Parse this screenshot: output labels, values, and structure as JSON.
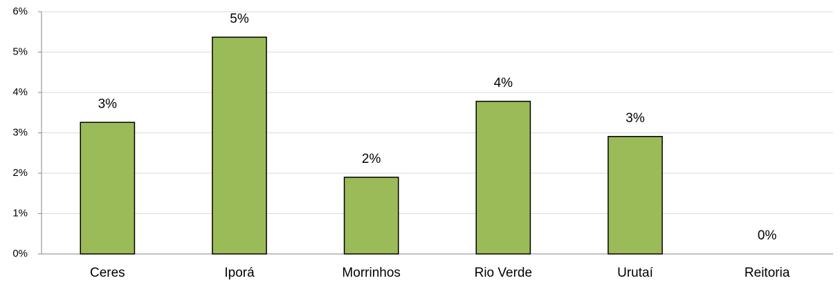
{
  "chart_data": {
    "type": "bar",
    "categories": [
      "Ceres",
      "Iporá",
      "Morrinhos",
      "Rio Verde",
      "Urutaí",
      "Reitoria"
    ],
    "values": [
      3.26,
      5.37,
      1.9,
      3.78,
      2.91,
      0
    ],
    "value_labels": [
      "3%",
      "5%",
      "2%",
      "4%",
      "3%",
      "0%"
    ],
    "color": "#9bbb59",
    "ylim": [
      0,
      6
    ],
    "yticks": [
      {
        "value": 0,
        "label": "0%"
      },
      {
        "value": 1,
        "label": "1%"
      },
      {
        "value": 2,
        "label": "2%"
      },
      {
        "value": 3,
        "label": "3%"
      },
      {
        "value": 4,
        "label": "4%"
      },
      {
        "value": 5,
        "label": "5%"
      },
      {
        "value": 6,
        "label": "6%"
      }
    ],
    "grid": true
  }
}
